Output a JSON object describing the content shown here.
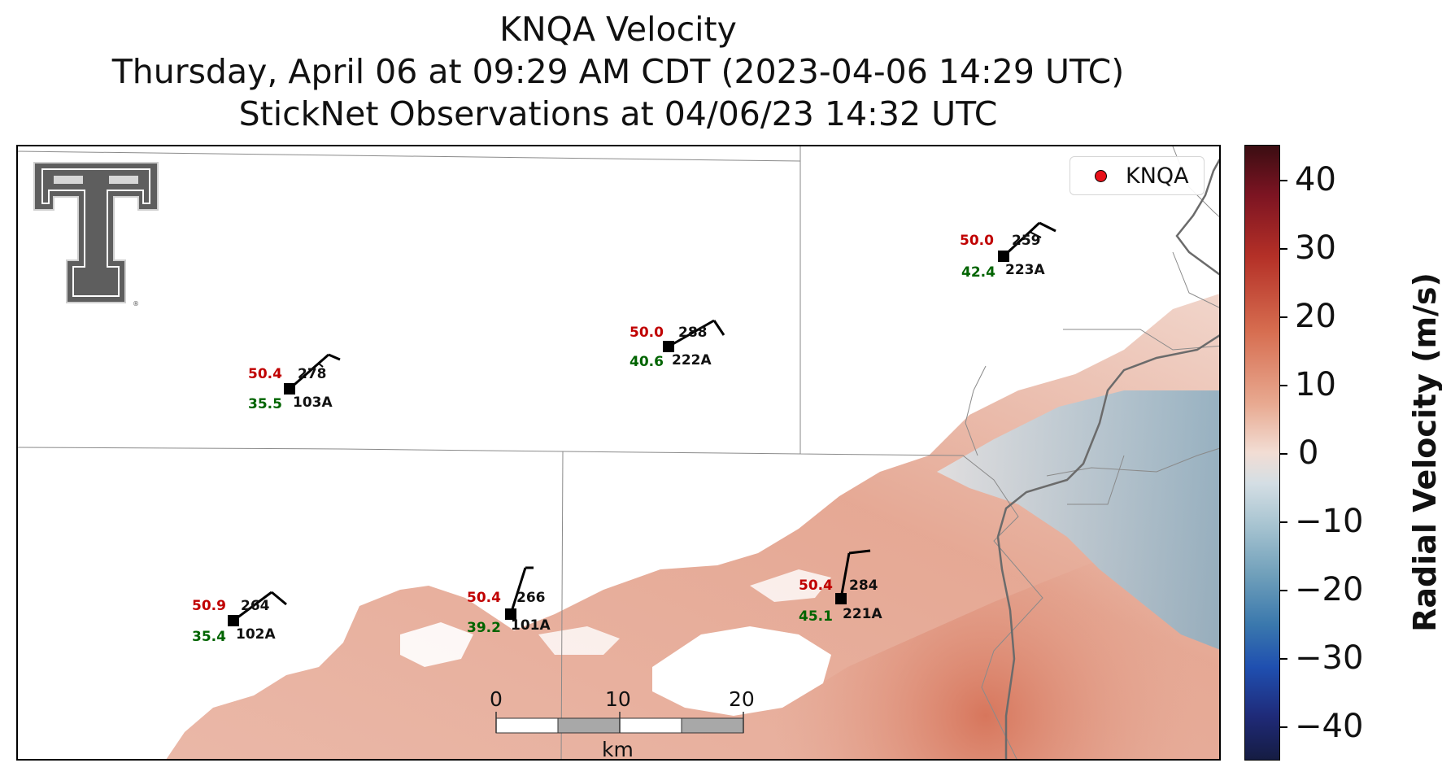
{
  "title": {
    "line1": "KNQA Velocity",
    "line2": "Thursday, April 06 at 09:29 AM CDT (2023-04-06 14:29 UTC)",
    "line3": "StickNet Observations at 04/06/23 14:32 UTC"
  },
  "legend": {
    "label": "KNQA",
    "marker_color": "#e8111a"
  },
  "colorbar": {
    "title": "Radial Velocity (m/s)",
    "ticks": [
      "40",
      "30",
      "20",
      "10",
      "0",
      "−10",
      "−20",
      "−30",
      "−40"
    ]
  },
  "stations": [
    {
      "id": "103A",
      "temp": "50.4",
      "dew": "35.5",
      "dir": "278"
    },
    {
      "id": "222A",
      "temp": "50.0",
      "dew": "40.6",
      "dir": "288"
    },
    {
      "id": "223A",
      "temp": "50.0",
      "dew": "42.4",
      "dir": "259"
    },
    {
      "id": "102A",
      "temp": "50.9",
      "dew": "35.4",
      "dir": "264"
    },
    {
      "id": "101A",
      "temp": "50.4",
      "dew": "39.2",
      "dir": "266"
    },
    {
      "id": "221A",
      "temp": "50.4",
      "dew": "45.1",
      "dir": "284"
    }
  ],
  "scalebar": {
    "ticks": [
      "0",
      "10",
      "20"
    ],
    "unit": "km"
  },
  "logo": "texas-tech-double-t-logo",
  "colors": {
    "temp": "#c00000",
    "dew": "#006400",
    "positive_velocity": "#d98a74",
    "negative_velocity": "#8fb3c6"
  }
}
